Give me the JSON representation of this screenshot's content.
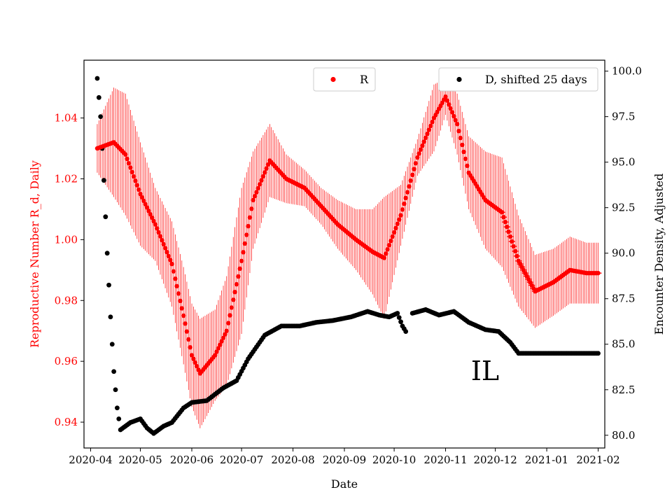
{
  "chart_data": {
    "type": "scatter",
    "xlabel": "Date",
    "ylabel_left": "Reproductive Number R_d, Daily",
    "ylabel_right": "Encounter Density, Adjusted",
    "annotation": "IL",
    "colors": {
      "r_series": "#ff0000",
      "d_series": "#000000"
    },
    "x_range": [
      "2020-03-28",
      "2021-02-05"
    ],
    "x_ticks": [
      "2020-04",
      "2020-05",
      "2020-06",
      "2020-07",
      "2020-08",
      "2020-09",
      "2020-10",
      "2020-11",
      "2020-12",
      "2021-01",
      "2021-02"
    ],
    "y_left": {
      "ylim": [
        0.9315,
        1.059
      ],
      "ticks": [
        "0.94",
        "0.96",
        "0.98",
        "1.00",
        "1.02",
        "1.04"
      ]
    },
    "y_right": {
      "ylim": [
        79.3,
        100.6
      ],
      "ticks": [
        "80.0",
        "82.5",
        "85.0",
        "87.5",
        "90.0",
        "92.5",
        "95.0",
        "97.5",
        "100.0"
      ]
    },
    "legend": {
      "r_label": "R",
      "d_label": "D, shifted 25 days"
    },
    "series": [
      {
        "name": "R",
        "axis": "left",
        "error_band": "vertical error bars",
        "points": [
          [
            "2020-04-05",
            1.03,
            0.008
          ],
          [
            "2020-04-15",
            1.032,
            0.018
          ],
          [
            "2020-04-22",
            1.028,
            0.02
          ],
          [
            "2020-05-01",
            1.015,
            0.017
          ],
          [
            "2020-05-10",
            1.005,
            0.012
          ],
          [
            "2020-05-20",
            0.992,
            0.014
          ],
          [
            "2020-05-27",
            0.975,
            0.016
          ],
          [
            "2020-06-01",
            0.962,
            0.017
          ],
          [
            "2020-06-06",
            0.956,
            0.018
          ],
          [
            "2020-06-15",
            0.962,
            0.015
          ],
          [
            "2020-06-22",
            0.97,
            0.018
          ],
          [
            "2020-07-01",
            0.993,
            0.024
          ],
          [
            "2020-07-08",
            1.013,
            0.016
          ],
          [
            "2020-07-18",
            1.026,
            0.012
          ],
          [
            "2020-07-28",
            1.02,
            0.008
          ],
          [
            "2020-08-08",
            1.017,
            0.006
          ],
          [
            "2020-08-18",
            1.011,
            0.006
          ],
          [
            "2020-08-28",
            1.005,
            0.008
          ],
          [
            "2020-09-08",
            1.0,
            0.01
          ],
          [
            "2020-09-18",
            0.996,
            0.014
          ],
          [
            "2020-09-25",
            0.994,
            0.02
          ],
          [
            "2020-10-05",
            1.008,
            0.01
          ],
          [
            "2020-10-15",
            1.027,
            0.006
          ],
          [
            "2020-10-25",
            1.04,
            0.011
          ],
          [
            "2020-11-01",
            1.047,
            0.006
          ],
          [
            "2020-11-08",
            1.038,
            0.01
          ],
          [
            "2020-11-15",
            1.022,
            0.012
          ],
          [
            "2020-11-25",
            1.013,
            0.016
          ],
          [
            "2020-12-05",
            1.009,
            0.018
          ],
          [
            "2020-12-15",
            0.993,
            0.015
          ],
          [
            "2020-12-25",
            0.983,
            0.012
          ],
          [
            "2021-01-05",
            0.986,
            0.011
          ],
          [
            "2021-01-15",
            0.99,
            0.011
          ],
          [
            "2021-01-25",
            0.989,
            0.01
          ],
          [
            "2021-02-01",
            0.989,
            0.01
          ]
        ]
      },
      {
        "name": "D, shifted 25 days",
        "axis": "right",
        "points": [
          [
            "2020-04-05",
            99.6
          ],
          [
            "2020-04-07",
            97.5
          ],
          [
            "2020-04-09",
            94.0
          ],
          [
            "2020-04-11",
            90.0
          ],
          [
            "2020-04-13",
            86.5
          ],
          [
            "2020-04-15",
            83.5
          ],
          [
            "2020-04-17",
            81.5
          ],
          [
            "2020-04-19",
            80.3
          ],
          [
            "2020-04-25",
            80.7
          ],
          [
            "2020-05-01",
            80.9
          ],
          [
            "2020-05-05",
            80.4
          ],
          [
            "2020-05-09",
            80.1
          ],
          [
            "2020-05-15",
            80.5
          ],
          [
            "2020-05-20",
            80.7
          ],
          [
            "2020-05-27",
            81.5
          ],
          [
            "2020-06-01",
            81.8
          ],
          [
            "2020-06-10",
            81.9
          ],
          [
            "2020-06-20",
            82.6
          ],
          [
            "2020-06-28",
            83.0
          ],
          [
            "2020-07-05",
            84.2
          ],
          [
            "2020-07-15",
            85.5
          ],
          [
            "2020-07-25",
            86.0
          ],
          [
            "2020-08-05",
            86.0
          ],
          [
            "2020-08-15",
            86.2
          ],
          [
            "2020-08-25",
            86.3
          ],
          [
            "2020-09-05",
            86.5
          ],
          [
            "2020-09-15",
            86.8
          ],
          [
            "2020-09-22",
            86.6
          ],
          [
            "2020-09-28",
            86.5
          ],
          [
            "2020-10-03",
            86.7
          ],
          [
            "2020-10-06",
            86.0
          ],
          [
            "2020-10-08",
            85.7
          ],
          [
            "2020-10-12",
            86.7
          ],
          [
            "2020-10-20",
            86.9
          ],
          [
            "2020-10-28",
            86.6
          ],
          [
            "2020-11-06",
            86.8
          ],
          [
            "2020-11-15",
            86.2
          ],
          [
            "2020-11-25",
            85.8
          ],
          [
            "2020-12-03",
            85.7
          ],
          [
            "2020-12-10",
            85.1
          ],
          [
            "2020-12-15",
            84.5
          ],
          [
            "2021-01-01",
            84.5
          ],
          [
            "2021-02-01",
            84.5
          ]
        ]
      }
    ]
  }
}
